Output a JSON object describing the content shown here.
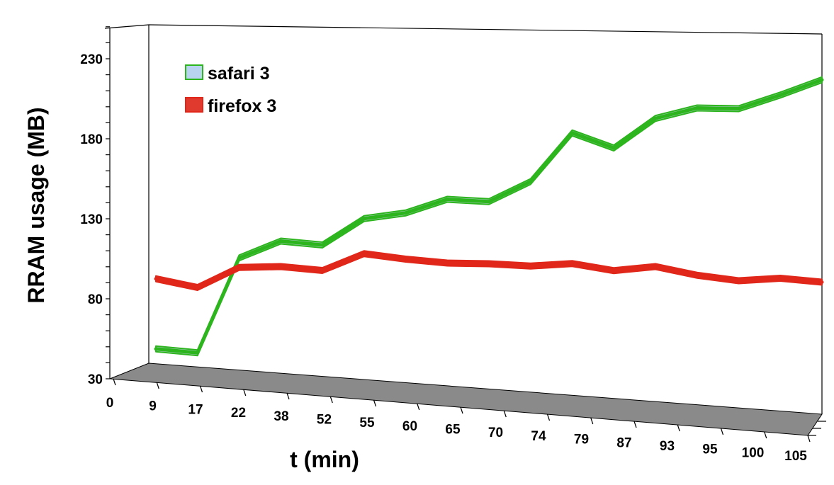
{
  "chart_data": {
    "type": "line",
    "title": "",
    "xlabel": "t (min)",
    "ylabel": "RRAM usage (MB)",
    "x": [
      0,
      9,
      17,
      22,
      38,
      52,
      55,
      60,
      65,
      70,
      74,
      79,
      87,
      93,
      95,
      100,
      105
    ],
    "y_ticks": [
      30,
      80,
      130,
      180,
      230
    ],
    "ylim": [
      30,
      250
    ],
    "grid": false,
    "legend_position": "top-left",
    "series": [
      {
        "name": "safari 3",
        "color": "#2db51e",
        "legend_color": "#b8d3f0",
        "values": [
          39,
          38,
          99,
          111,
          110,
          128,
          133,
          143,
          143,
          157,
          189,
          181,
          201,
          209,
          210,
          220,
          231
        ]
      },
      {
        "name": "firefox 3",
        "color": "#e0271a",
        "legend_color": "#e03a2e",
        "values": [
          83,
          79,
          93,
          95,
          94,
          106,
          104,
          103,
          104,
          104,
          107,
          104,
          108,
          104,
          102,
          105,
          104
        ]
      }
    ]
  }
}
